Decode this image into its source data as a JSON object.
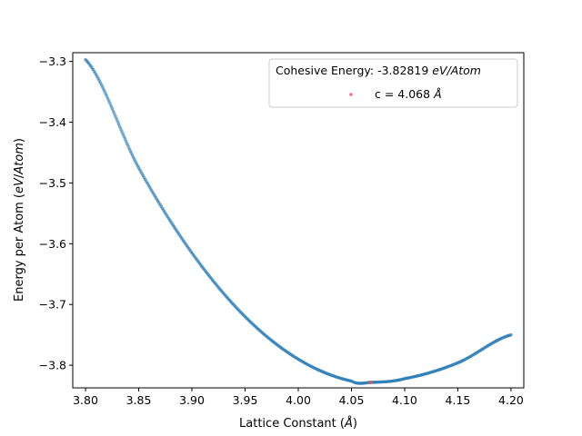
{
  "chart_data": {
    "type": "scatter",
    "xlabel": "Lattice Constant (Å)",
    "ylabel": "Energy per Atom (eV/Atom)",
    "xlim": [
      3.788,
      4.212
    ],
    "ylim": [
      -3.8372,
      -3.2856
    ],
    "x_ticks": [
      "3.80",
      "3.85",
      "3.90",
      "3.95",
      "4.00",
      "4.05",
      "4.10",
      "4.15",
      "4.20"
    ],
    "y_ticks": [
      "−3.3",
      "−3.4",
      "−3.5",
      "−3.6",
      "−3.7",
      "−3.8"
    ],
    "grid": false,
    "legend": {
      "placement": "top-right",
      "title_prefix": "Cohesive Energy: -3.82819 ",
      "title_unit": "eV/Atom",
      "entry_prefix": "c = 4.068 ",
      "entry_unit": "Å"
    },
    "curve": {
      "x_start": 3.8,
      "x_end": 4.2,
      "points": 400,
      "minimum_x": 4.068,
      "minimum_y": -3.82819,
      "sample_points": [
        {
          "x": 3.8,
          "y": -3.297
        },
        {
          "x": 3.85,
          "y": -3.475
        },
        {
          "x": 3.9,
          "y": -3.615
        },
        {
          "x": 3.95,
          "y": -3.72
        },
        {
          "x": 4.0,
          "y": -3.79
        },
        {
          "x": 4.05,
          "y": -3.826
        },
        {
          "x": 4.068,
          "y": -3.82819
        },
        {
          "x": 4.1,
          "y": -3.822
        },
        {
          "x": 4.15,
          "y": -3.796
        },
        {
          "x": 4.2,
          "y": -3.75
        }
      ]
    },
    "minimum": {
      "x": 4.068,
      "y": -3.82819
    }
  }
}
